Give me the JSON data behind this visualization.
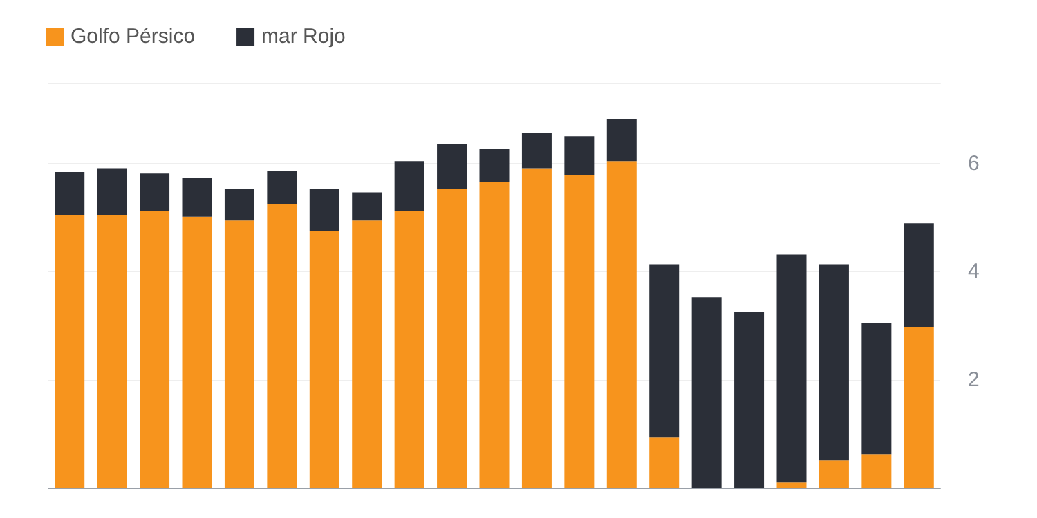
{
  "chart_data": {
    "type": "bar",
    "stacked": true,
    "categories": [
      null,
      null,
      null,
      null,
      null,
      null,
      null,
      null,
      null,
      null,
      null,
      null,
      null,
      null,
      null,
      null,
      null,
      null,
      null,
      null,
      null
    ],
    "series": [
      {
        "name": "Golfo Pérsico",
        "color": "#f7941d",
        "values": [
          5.05,
          5.05,
          5.12,
          5.02,
          4.95,
          5.25,
          4.75,
          4.95,
          5.12,
          5.53,
          5.66,
          5.92,
          5.79,
          6.05,
          0.93,
          0,
          0,
          0.1,
          0.51,
          0.61,
          2.97
        ]
      },
      {
        "name": "mar Rojo",
        "color": "#2b2f38",
        "values": [
          0.8,
          0.87,
          0.7,
          0.72,
          0.58,
          0.62,
          0.78,
          0.52,
          0.93,
          0.83,
          0.61,
          0.66,
          0.72,
          0.78,
          3.21,
          3.53,
          3.25,
          4.22,
          3.63,
          2.44,
          1.93
        ]
      }
    ],
    "ylim": [
      0,
      7.5
    ],
    "yticks": [
      2,
      4,
      6
    ],
    "grid": "y",
    "legend": "top left"
  }
}
